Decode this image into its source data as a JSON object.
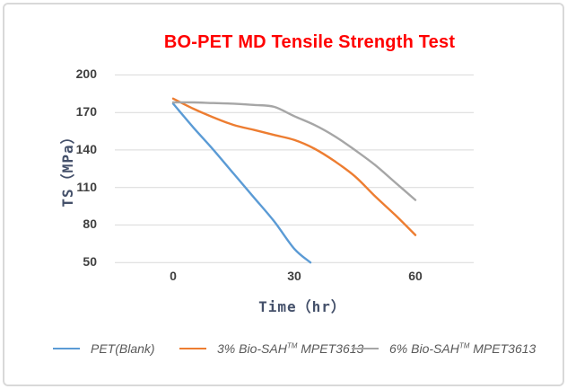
{
  "title": {
    "text": "BO-PET MD Tensile Strength Test",
    "color": "#FF0000"
  },
  "y_axis": {
    "title": "TS（MPa）",
    "ticks": [
      200,
      170,
      140,
      110,
      80,
      50
    ]
  },
  "x_axis": {
    "title": "Time（hr）",
    "ticks": [
      0,
      30,
      60
    ]
  },
  "legend": {
    "items": [
      {
        "pre": "PET(Blank)",
        "tm": "",
        "post": "",
        "color": "#5B9BD5"
      },
      {
        "pre": "3% Bio-SAH",
        "tm": "TM",
        "post": " MPET3613",
        "color": "#ED7D31"
      },
      {
        "pre": "6% Bio-SAH",
        "tm": "TM",
        "post": " MPET3613",
        "color": "#A6A6A6"
      }
    ]
  },
  "chart_data": {
    "type": "line",
    "title": "BO-PET MD Tensile Strength Test",
    "xlabel": "Time (hr)",
    "ylabel": "TS (MPa)",
    "xlim": [
      0,
      60
    ],
    "ylim": [
      50,
      200
    ],
    "x_ticks": [
      0,
      30,
      60
    ],
    "y_ticks": [
      50,
      80,
      110,
      140,
      170,
      200
    ],
    "grid": "horizontal-only",
    "gridline_color": "#D9D9D9",
    "legend_position": "bottom",
    "series": [
      {
        "name": "PET(Blank)",
        "color": "#5B9BD5",
        "x": [
          0,
          5,
          10,
          15,
          20,
          25,
          30,
          34
        ],
        "y": [
          177,
          158,
          140,
          121,
          102,
          83,
          61,
          50
        ]
      },
      {
        "name": "3% Bio-SAH(TM) MPET3613",
        "color": "#ED7D31",
        "x": [
          0,
          5,
          10,
          15,
          20,
          25,
          30,
          35,
          40,
          45,
          50,
          55,
          60
        ],
        "y": [
          181,
          173,
          166,
          160,
          156,
          152,
          148,
          141,
          131,
          119,
          103,
          88,
          72
        ]
      },
      {
        "name": "6% Bio-SAH(TM) MPET3613",
        "color": "#A6A6A6",
        "x": [
          0,
          5,
          10,
          15,
          20,
          25,
          30,
          35,
          40,
          45,
          50,
          55,
          60
        ],
        "y": [
          178,
          178,
          177.5,
          177,
          176,
          174.5,
          167,
          160,
          151,
          140,
          128,
          114,
          100
        ]
      }
    ]
  }
}
